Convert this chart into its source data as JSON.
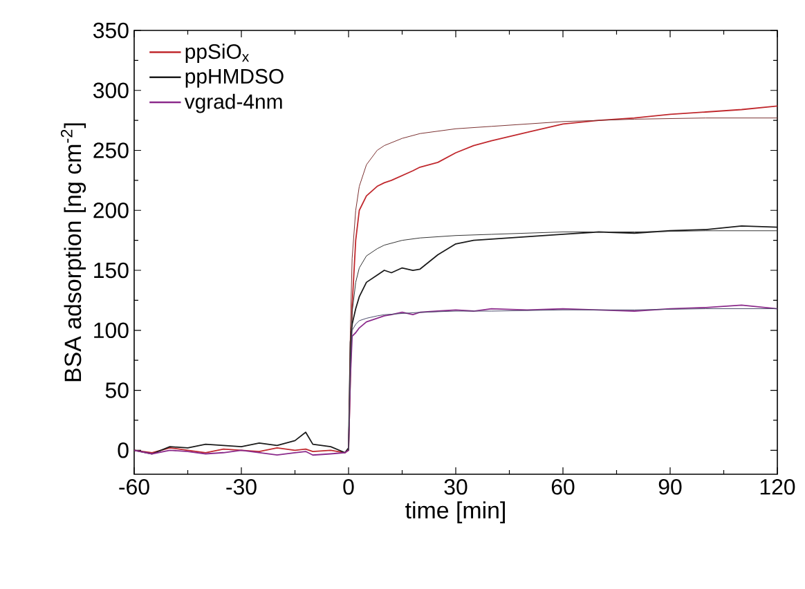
{
  "chart_data": {
    "type": "line",
    "xlabel": "time [min]",
    "ylabel": "BSA adsorption [ng cm$^{-2}$]",
    "x": [
      -60,
      -55,
      -50,
      -45,
      -40,
      -35,
      -30,
      -25,
      -20,
      -15,
      -12,
      -10,
      -5,
      -1,
      0,
      0.5,
      1,
      2,
      3,
      5,
      8,
      10,
      12,
      15,
      18,
      20,
      25,
      30,
      35,
      40,
      50,
      60,
      70,
      80,
      90,
      100,
      110,
      120
    ],
    "series": [
      {
        "name": "ppSiO$_{x}$",
        "color": "#c0282d",
        "values": [
          0,
          -2,
          2,
          0,
          -2,
          1,
          0,
          -1,
          2,
          0,
          1,
          -1,
          0,
          -2,
          0,
          60,
          120,
          175,
          200,
          212,
          220,
          223,
          225,
          229,
          233,
          236,
          240,
          248,
          254,
          258,
          265,
          272,
          275,
          277,
          280,
          282,
          284,
          287
        ]
      },
      {
        "name": "ppHMDSO",
        "color": "#1a1a1a",
        "values": [
          0,
          -3,
          3,
          2,
          5,
          4,
          3,
          6,
          4,
          8,
          15,
          5,
          3,
          -2,
          2,
          90,
          105,
          118,
          128,
          140,
          146,
          150,
          148,
          152,
          150,
          151,
          163,
          172,
          175,
          176,
          178,
          180,
          182,
          181,
          183,
          184,
          187,
          186
        ]
      },
      {
        "name": "vgrad-4nm",
        "color": "#8b2a8b",
        "values": [
          0,
          -3,
          0,
          -1,
          -3,
          -2,
          0,
          -2,
          -4,
          -2,
          -1,
          -4,
          -3,
          -2,
          0,
          60,
          95,
          98,
          102,
          107,
          110,
          112,
          113,
          115,
          113,
          115,
          116,
          117,
          116,
          118,
          117,
          118,
          117,
          116,
          118,
          119,
          121,
          118
        ]
      },
      {
        "color": "#7a3030",
        "x": [
          0,
          0.5,
          1,
          2,
          3,
          5,
          8,
          10,
          15,
          20,
          30,
          40,
          60,
          80,
          100,
          120
        ],
        "values": [
          0,
          100,
          160,
          200,
          220,
          238,
          250,
          254,
          260,
          264,
          268,
          270,
          274,
          276,
          277,
          277
        ]
      },
      {
        "color": "#333333",
        "x": [
          0,
          0.5,
          1,
          2,
          3,
          5,
          8,
          10,
          15,
          20,
          30,
          40,
          60,
          80,
          100,
          120
        ],
        "values": [
          0,
          80,
          115,
          140,
          152,
          162,
          168,
          171,
          175,
          177,
          179,
          180,
          182,
          182,
          183,
          183
        ]
      },
      {
        "color": "#4a4a6a",
        "x": [
          0,
          0.5,
          1,
          2,
          3,
          5,
          8,
          10,
          15,
          20,
          30,
          40,
          60,
          80,
          100,
          120
        ],
        "values": [
          0,
          70,
          100,
          105,
          108,
          110,
          112,
          113,
          114,
          115,
          116,
          116,
          117,
          117,
          118,
          118
        ]
      }
    ],
    "xlim": [
      -60,
      120
    ],
    "xticks": [
      -60,
      -30,
      0,
      30,
      60,
      90,
      120
    ],
    "ylim": [
      -20,
      350
    ],
    "yticks": [
      0,
      50,
      100,
      150,
      200,
      250,
      300,
      350
    ],
    "legend": "top left",
    "line_style": "solid"
  }
}
